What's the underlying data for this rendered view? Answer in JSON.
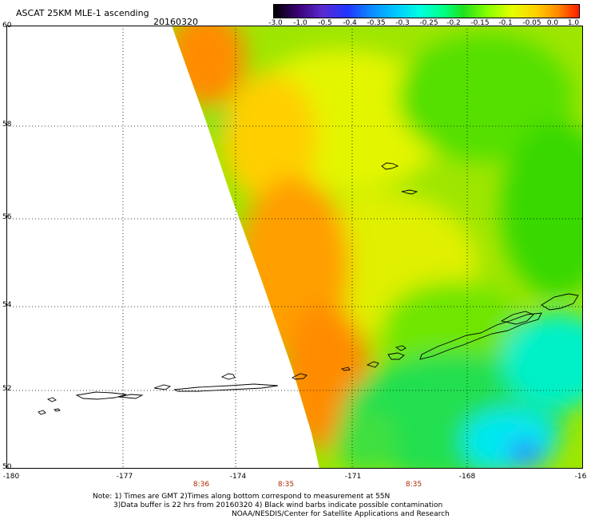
{
  "header": {
    "title": "ASCAT 25KM MLE-1 ascending",
    "date": "20160320"
  },
  "colorbar": {
    "labels": [
      "-3.0",
      "-1.0",
      "-0.5",
      "-0.4",
      "-0.35",
      "-0.3",
      "-0.25",
      "-0.2",
      "-0.15",
      "-0.1",
      "-0.05",
      "0.0",
      "1.0"
    ]
  },
  "map": {
    "lat_labels": [
      "60",
      "58",
      "56",
      "54",
      "52",
      "50"
    ],
    "lon_labels": [
      "-180",
      "-177",
      "-174",
      "-171",
      "-168",
      "-16"
    ],
    "time_labels": [
      "8:36",
      "8:35",
      "8:35"
    ],
    "colors": {
      "orange": "#ff8c00",
      "yellow": "#ffe800",
      "green": "#35e000",
      "cyan": "#00ffd0",
      "blue": "#0090ff"
    }
  },
  "notes": {
    "line1": "Note: 1) Times are GMT 2)Times along bottom correspond to measurement at 55N",
    "line2": "3)Data buffer is 22 hrs from 20160320 4) Black wind barbs indicate possible contamination",
    "line3": "NOAA/NESDIS/Center for Satellite Applications and Research"
  }
}
